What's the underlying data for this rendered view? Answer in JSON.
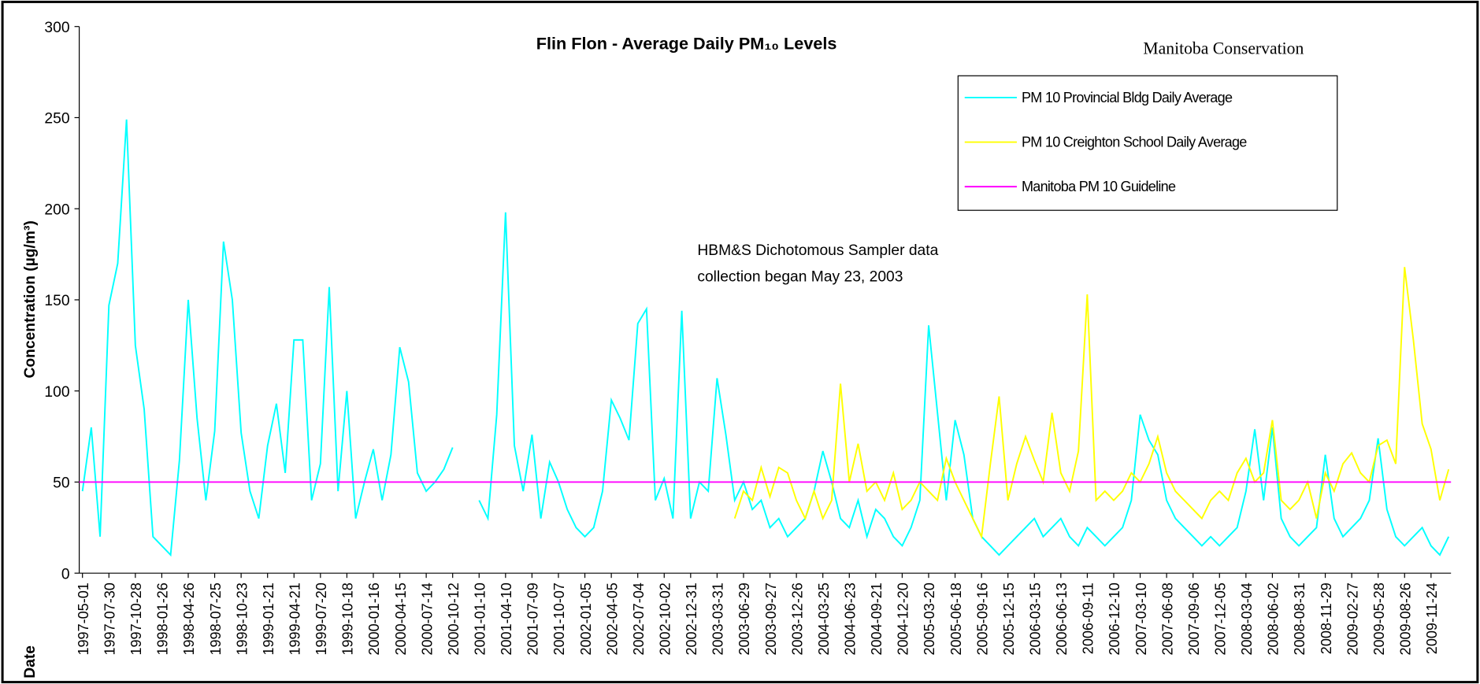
{
  "chart_data": {
    "type": "line",
    "title": "Flin Flon - Average Daily PM₁₀ Levels",
    "ylabel": "Concentration (µg/m³)",
    "xlabel": "Date",
    "annotations": [
      "Manitoba Conservation",
      "HBM&S Dichotomous Sampler data",
      "collection began May 23, 2003"
    ],
    "ylim": [
      0,
      300
    ],
    "yticks": [
      0,
      50,
      100,
      150,
      200,
      250,
      300
    ],
    "xlim": [
      "1997-04-20",
      "2010-01-31"
    ],
    "xticks": [
      "1997-05-01",
      "1997-07-30",
      "1997-10-28",
      "1998-01-26",
      "1998-04-26",
      "1998-07-25",
      "1998-10-23",
      "1999-01-21",
      "1999-04-21",
      "1999-07-20",
      "1999-10-18",
      "2000-01-16",
      "2000-04-15",
      "2000-07-14",
      "2000-10-12",
      "2001-01-10",
      "2001-04-10",
      "2001-07-09",
      "2001-10-07",
      "2002-01-05",
      "2002-04-05",
      "2002-07-04",
      "2002-10-02",
      "2002-12-31",
      "2003-03-31",
      "2003-06-29",
      "2003-09-27",
      "2003-12-26",
      "2004-03-25",
      "2004-06-23",
      "2004-09-21",
      "2004-12-20",
      "2005-03-20",
      "2005-06-18",
      "2005-09-16",
      "2005-12-15",
      "2006-03-15",
      "2006-06-13",
      "2006-09-11",
      "2006-12-10",
      "2007-03-10",
      "2007-06-08",
      "2007-09-06",
      "2007-12-05",
      "2008-03-04",
      "2008-06-02",
      "2008-08-31",
      "2008-11-29",
      "2009-02-27",
      "2009-05-28",
      "2009-08-26",
      "2009-11-24"
    ],
    "x": [
      "1997-05-01",
      "1997-05-31",
      "1997-06-30",
      "1997-07-30",
      "1997-08-29",
      "1997-09-28",
      "1997-10-28",
      "1997-11-27",
      "1997-12-27",
      "1998-01-26",
      "1998-02-25",
      "1998-03-27",
      "1998-04-26",
      "1998-05-26",
      "1998-06-25",
      "1998-07-25",
      "1998-08-24",
      "1998-09-23",
      "1998-10-23",
      "1998-11-22",
      "1998-12-22",
      "1999-01-21",
      "1999-02-20",
      "1999-03-22",
      "1999-04-21",
      "1999-05-21",
      "1999-06-20",
      "1999-07-20",
      "1999-08-19",
      "1999-09-18",
      "1999-10-18",
      "1999-11-17",
      "1999-12-17",
      "2000-01-16",
      "2000-02-15",
      "2000-03-16",
      "2000-04-15",
      "2000-05-15",
      "2000-06-14",
      "2000-07-14",
      "2000-08-13",
      "2000-09-12",
      "2000-10-12",
      "2000-11-11",
      "2000-12-11",
      "2001-01-10",
      "2001-02-09",
      "2001-03-11",
      "2001-04-10",
      "2001-05-10",
      "2001-06-09",
      "2001-07-09",
      "2001-08-08",
      "2001-09-07",
      "2001-10-07",
      "2001-11-06",
      "2001-12-06",
      "2002-01-05",
      "2002-02-04",
      "2002-03-06",
      "2002-04-05",
      "2002-05-05",
      "2002-06-04",
      "2002-07-04",
      "2002-08-03",
      "2002-09-02",
      "2002-10-02",
      "2002-11-01",
      "2002-12-01",
      "2002-12-31",
      "2003-01-30",
      "2003-03-01",
      "2003-03-31",
      "2003-04-30",
      "2003-05-30",
      "2003-06-29",
      "2003-07-29",
      "2003-08-28",
      "2003-09-27",
      "2003-10-27",
      "2003-11-26",
      "2003-12-26",
      "2004-01-25",
      "2004-02-24",
      "2004-03-25",
      "2004-04-24",
      "2004-05-24",
      "2004-06-23",
      "2004-07-23",
      "2004-08-22",
      "2004-09-21",
      "2004-10-21",
      "2004-11-20",
      "2004-12-20",
      "2005-01-19",
      "2005-02-18",
      "2005-03-20",
      "2005-04-19",
      "2005-05-19",
      "2005-06-18",
      "2005-07-18",
      "2005-08-17",
      "2005-09-16",
      "2005-10-16",
      "2005-11-15",
      "2005-12-15",
      "2006-01-14",
      "2006-02-13",
      "2006-03-15",
      "2006-04-14",
      "2006-05-14",
      "2006-06-13",
      "2006-07-13",
      "2006-08-12",
      "2006-09-11",
      "2006-10-11",
      "2006-11-10",
      "2006-12-10",
      "2007-01-09",
      "2007-02-08",
      "2007-03-10",
      "2007-04-09",
      "2007-05-09",
      "2007-06-08",
      "2007-07-08",
      "2007-08-07",
      "2007-09-06",
      "2007-10-06",
      "2007-11-05",
      "2007-12-05",
      "2008-01-04",
      "2008-02-03",
      "2008-03-04",
      "2008-04-03",
      "2008-05-03",
      "2008-06-02",
      "2008-07-02",
      "2008-08-01",
      "2008-08-31",
      "2008-09-30",
      "2008-10-30",
      "2008-11-29",
      "2008-12-29",
      "2009-01-28",
      "2009-02-27",
      "2009-03-29",
      "2009-04-28",
      "2009-05-28",
      "2009-06-27",
      "2009-07-27",
      "2009-08-26",
      "2009-09-25",
      "2009-10-25",
      "2009-11-24",
      "2009-12-24",
      "2010-01-23"
    ],
    "series": [
      {
        "name": "PM 10 Provincial Bldg Daily Average",
        "color": "#00ffff",
        "values": [
          45,
          80,
          20,
          147,
          170,
          249,
          125,
          90,
          20,
          15,
          10,
          62,
          150,
          85,
          40,
          78,
          182,
          150,
          77,
          45,
          30,
          70,
          93,
          55,
          128,
          128,
          40,
          60,
          157,
          45,
          100,
          30,
          50,
          68,
          40,
          65,
          124,
          105,
          55,
          45,
          50,
          57,
          69,
          null,
          null,
          40,
          30,
          87,
          198,
          70,
          45,
          76,
          30,
          61,
          50,
          35,
          25,
          20,
          25,
          45,
          95,
          85,
          73,
          137,
          145,
          40,
          52,
          30,
          144,
          30,
          50,
          45,
          107,
          76,
          40,
          50,
          35,
          40,
          25,
          30,
          20,
          25,
          30,
          45,
          67,
          50,
          30,
          25,
          40,
          20,
          35,
          30,
          20,
          15,
          25,
          40,
          136,
          88,
          40,
          84,
          65,
          30,
          20,
          15,
          10,
          15,
          20,
          25,
          30,
          20,
          25,
          30,
          20,
          15,
          25,
          20,
          15,
          20,
          25,
          40,
          87,
          73,
          65,
          40,
          30,
          25,
          20,
          15,
          20,
          15,
          20,
          25,
          45,
          79,
          40,
          80,
          30,
          20,
          15,
          20,
          25,
          65,
          30,
          20,
          25,
          30,
          40,
          74,
          35,
          20,
          15,
          20,
          25,
          15,
          10,
          20
        ]
      },
      {
        "name": "PM 10 Creighton School Daily Average",
        "color": "#ffff00",
        "values": [
          null,
          null,
          null,
          null,
          null,
          null,
          null,
          null,
          null,
          null,
          null,
          null,
          null,
          null,
          null,
          null,
          null,
          null,
          null,
          null,
          null,
          null,
          null,
          null,
          null,
          null,
          null,
          null,
          null,
          null,
          null,
          null,
          null,
          null,
          null,
          null,
          null,
          null,
          null,
          null,
          null,
          null,
          null,
          null,
          null,
          null,
          null,
          null,
          null,
          null,
          null,
          null,
          null,
          null,
          null,
          null,
          null,
          null,
          null,
          null,
          null,
          null,
          null,
          null,
          null,
          null,
          null,
          null,
          null,
          null,
          null,
          null,
          null,
          null,
          30,
          45,
          40,
          58,
          42,
          58,
          55,
          40,
          30,
          45,
          30,
          40,
          104,
          50,
          71,
          45,
          50,
          40,
          55,
          35,
          40,
          50,
          45,
          40,
          63,
          50,
          40,
          30,
          20,
          60,
          97,
          40,
          60,
          75,
          62,
          50,
          88,
          55,
          45,
          67,
          153,
          40,
          45,
          40,
          45,
          55,
          50,
          60,
          75,
          55,
          45,
          40,
          35,
          30,
          40,
          45,
          40,
          55,
          63,
          50,
          55,
          84,
          40,
          35,
          40,
          50,
          30,
          55,
          45,
          60,
          66,
          55,
          50,
          70,
          73,
          60,
          168,
          128,
          82,
          68,
          40,
          57
        ]
      }
    ],
    "guideline": {
      "name": "Manitoba PM 10 Guideline",
      "color": "#ff00ff",
      "value": 50
    }
  }
}
